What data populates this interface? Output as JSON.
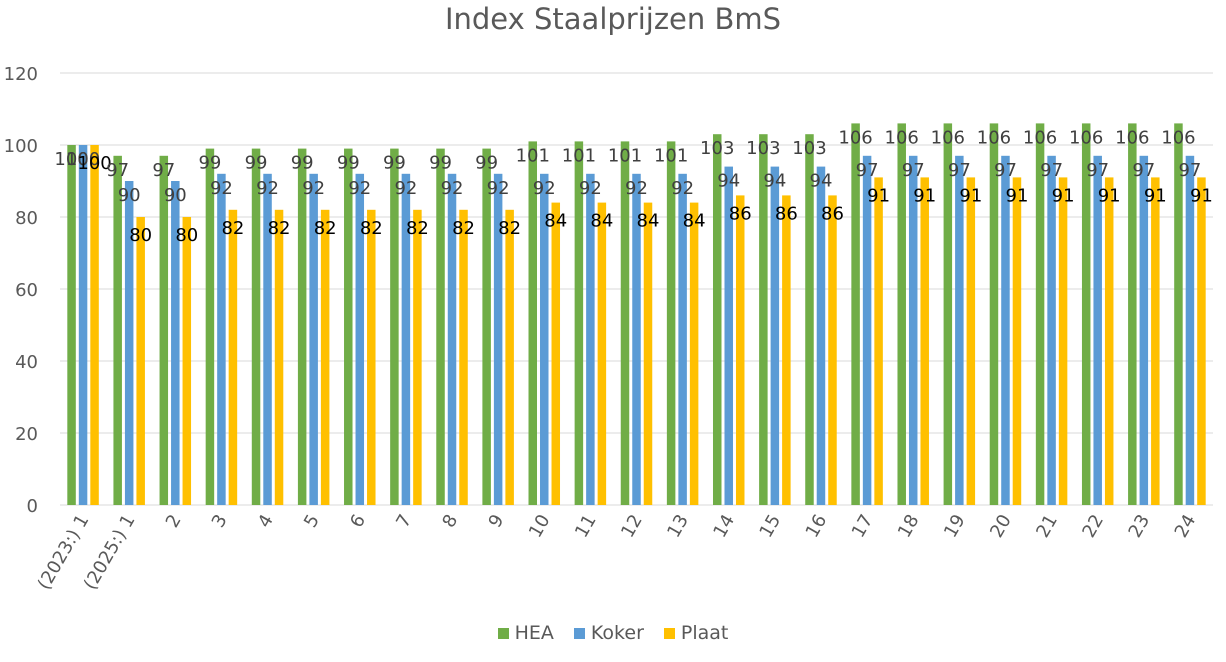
{
  "chart_data": {
    "type": "bar",
    "title": "Index Staalprijzen BmS",
    "xlabel": "",
    "ylabel": "",
    "ylim": [
      0,
      120
    ],
    "yticks": [
      0,
      20,
      40,
      60,
      80,
      100,
      120
    ],
    "grid": true,
    "legend_position": "bottom",
    "categories": [
      "(2023:) 1",
      "(2025:) 1",
      "2",
      "3",
      "4",
      "5",
      "6",
      "7",
      "8",
      "9",
      "10",
      "11",
      "12",
      "13",
      "14",
      "15",
      "16",
      "17",
      "18",
      "19",
      "20",
      "21",
      "22",
      "23",
      "24"
    ],
    "series": [
      {
        "name": "HEA",
        "color": "#70AD47",
        "values": [
          100,
          97,
          97,
          99,
          99,
          99,
          99,
          99,
          99,
          99,
          101,
          101,
          101,
          101,
          103,
          103,
          103,
          106,
          106,
          106,
          106,
          106,
          106,
          106,
          106
        ]
      },
      {
        "name": "Koker",
        "color": "#5B9BD5",
        "values": [
          100,
          90,
          90,
          92,
          92,
          92,
          92,
          92,
          92,
          92,
          92,
          92,
          92,
          92,
          94,
          94,
          94,
          97,
          97,
          97,
          97,
          97,
          97,
          97,
          97
        ]
      },
      {
        "name": "Plaat",
        "color": "#FFC000",
        "values": [
          100,
          80,
          80,
          82,
          82,
          82,
          82,
          82,
          82,
          82,
          84,
          84,
          84,
          84,
          86,
          86,
          86,
          91,
          91,
          91,
          91,
          91,
          91,
          91,
          91
        ]
      }
    ]
  }
}
